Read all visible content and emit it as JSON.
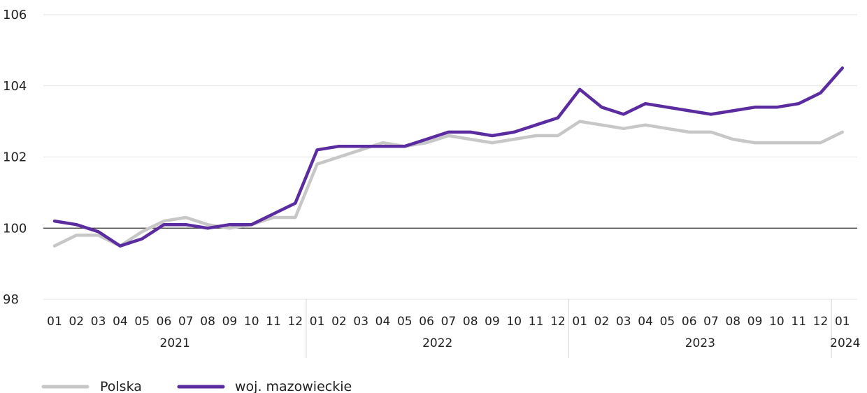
{
  "chart_data": {
    "type": "line",
    "title": "",
    "xlabel": "",
    "ylabel": "",
    "ylim": [
      98,
      106
    ],
    "yticks": [
      98,
      100,
      102,
      104,
      106
    ],
    "reference_line": 100,
    "grid": true,
    "legend_position": "bottom-left",
    "colors": {
      "Polska": "#c7c7c7",
      "woj. mazowieckie": "#5b2ca0",
      "grid": "#e3e3e3",
      "reference": "#333333"
    },
    "x": [
      "01",
      "02",
      "03",
      "04",
      "05",
      "06",
      "07",
      "08",
      "09",
      "10",
      "11",
      "12",
      "01",
      "02",
      "03",
      "04",
      "05",
      "06",
      "07",
      "08",
      "09",
      "10",
      "11",
      "12",
      "01",
      "02",
      "03",
      "04",
      "05",
      "06",
      "07",
      "08",
      "09",
      "10",
      "11",
      "12",
      "01"
    ],
    "year_groups": [
      {
        "label": "2021",
        "count": 12
      },
      {
        "label": "2022",
        "count": 12
      },
      {
        "label": "2023",
        "count": 12
      },
      {
        "label": "2024",
        "count": 1
      }
    ],
    "series": [
      {
        "name": "Polska",
        "values": [
          99.5,
          99.8,
          99.8,
          99.5,
          99.9,
          100.2,
          100.3,
          100.1,
          100.0,
          100.1,
          100.3,
          100.3,
          101.8,
          102.0,
          102.2,
          102.4,
          102.3,
          102.4,
          102.6,
          102.5,
          102.4,
          102.5,
          102.6,
          102.6,
          103.0,
          102.9,
          102.8,
          102.9,
          102.8,
          102.7,
          102.7,
          102.5,
          102.4,
          102.4,
          102.4,
          102.4,
          102.7
        ]
      },
      {
        "name": "woj. mazowieckie",
        "values": [
          100.2,
          100.1,
          99.9,
          99.5,
          99.7,
          100.1,
          100.1,
          100.0,
          100.1,
          100.1,
          100.4,
          100.7,
          102.2,
          102.3,
          102.3,
          102.3,
          102.3,
          102.5,
          102.7,
          102.7,
          102.6,
          102.7,
          102.9,
          103.1,
          103.9,
          103.4,
          103.2,
          103.5,
          103.4,
          103.3,
          103.2,
          103.3,
          103.4,
          103.4,
          103.5,
          103.8,
          104.5
        ]
      }
    ]
  }
}
